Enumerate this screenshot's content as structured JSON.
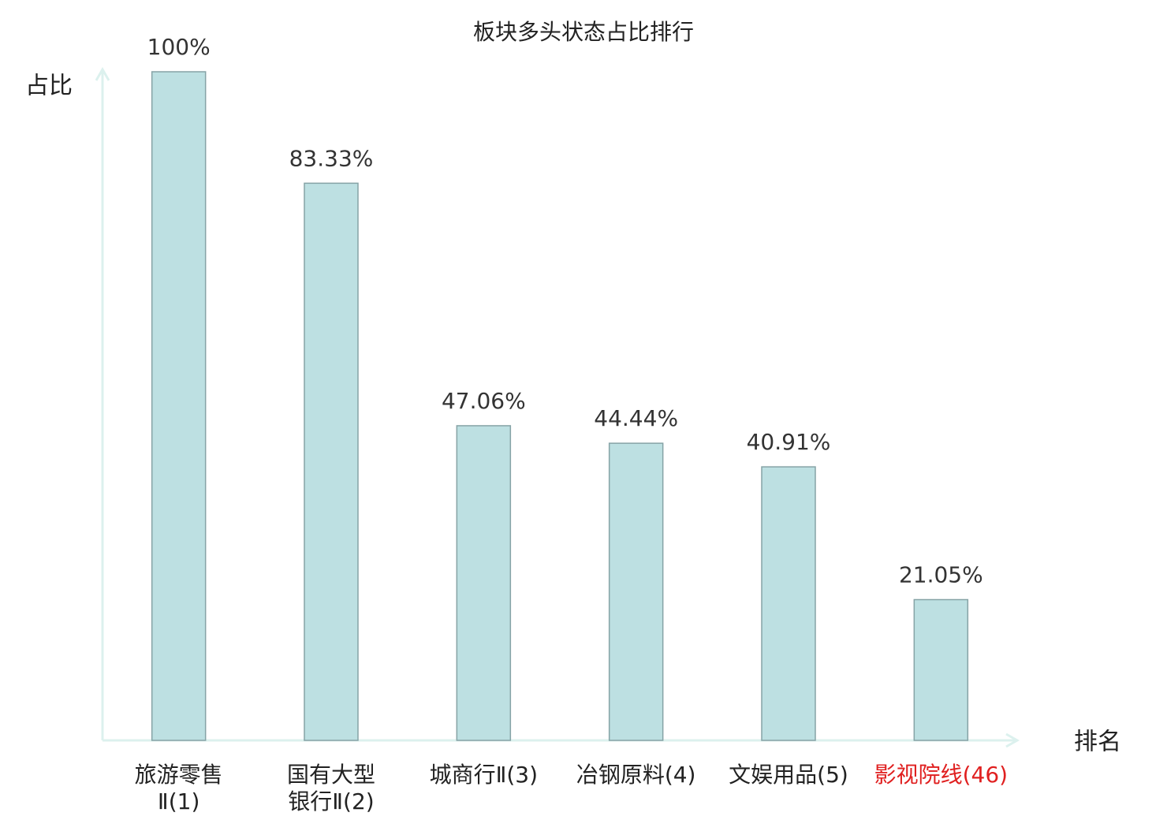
{
  "chart_data": {
    "type": "bar",
    "title": "板块多头状态占比排行",
    "y_label": "占比",
    "x_label": "排名",
    "categories": [
      "旅游零售\nⅡ(1)",
      "国有大型\n银行Ⅱ(2)",
      "城商行Ⅱ(3)",
      "冶钢原料(4)",
      "文娱用品(5)",
      "影视院线(46)"
    ],
    "category_colors": [
      "#222222",
      "#222222",
      "#222222",
      "#222222",
      "#222222",
      "#e02020"
    ],
    "values": [
      100,
      83.33,
      47.06,
      44.44,
      40.91,
      21.05
    ],
    "value_labels": [
      "100%",
      "83.33%",
      "47.06%",
      "44.44%",
      "40.91%",
      "21.05%"
    ],
    "color": "#bde0e2",
    "edge_color": "#86a3a6",
    "axis_color": "#dcf1ee",
    "ylim": [
      0,
      100
    ]
  }
}
